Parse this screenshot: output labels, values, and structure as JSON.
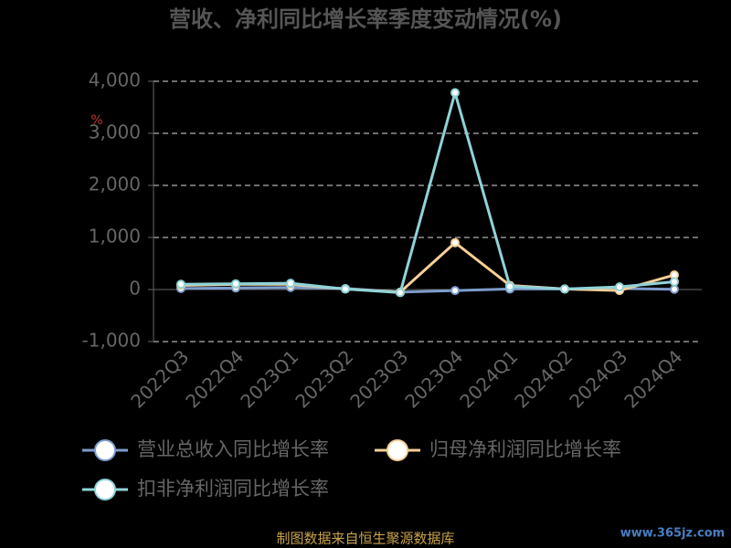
{
  "chart_data": {
    "type": "line",
    "title": "营收、净利同比增长率季度变动情况(%)",
    "ylabel": "%",
    "categories": [
      "2022Q3",
      "2022Q4",
      "2023Q1",
      "2023Q2",
      "2023Q3",
      "2023Q4",
      "2024Q1",
      "2024Q2",
      "2024Q3",
      "2024Q4"
    ],
    "series": [
      {
        "name": "营业总收入同比增长率",
        "color": "#7e9ccc",
        "values": [
          20,
          30,
          40,
          20,
          -50,
          -20,
          10,
          10,
          20,
          5
        ]
      },
      {
        "name": "归母净利润同比增长率",
        "color": "#f5cf97",
        "values": [
          80,
          100,
          100,
          10,
          -50,
          900,
          80,
          10,
          -20,
          280
        ]
      },
      {
        "name": "扣非净利润同比增长率",
        "color": "#8fd3d8",
        "values": [
          100,
          110,
          120,
          10,
          -60,
          3780,
          60,
          10,
          50,
          150
        ]
      }
    ],
    "ylim": [
      -1000,
      4000
    ],
    "yticks": [
      {
        "value": -1000,
        "label": "-1,000"
      },
      0,
      {
        "value": 1000,
        "label": "1,000"
      },
      {
        "value": 2000,
        "label": "2,000"
      },
      {
        "value": 3000,
        "label": "3,000"
      },
      {
        "value": 4000,
        "label": "4,000"
      }
    ],
    "grid": true,
    "source": "制图数据来自恒生聚源数据库",
    "watermark": "www.365jz.com"
  }
}
